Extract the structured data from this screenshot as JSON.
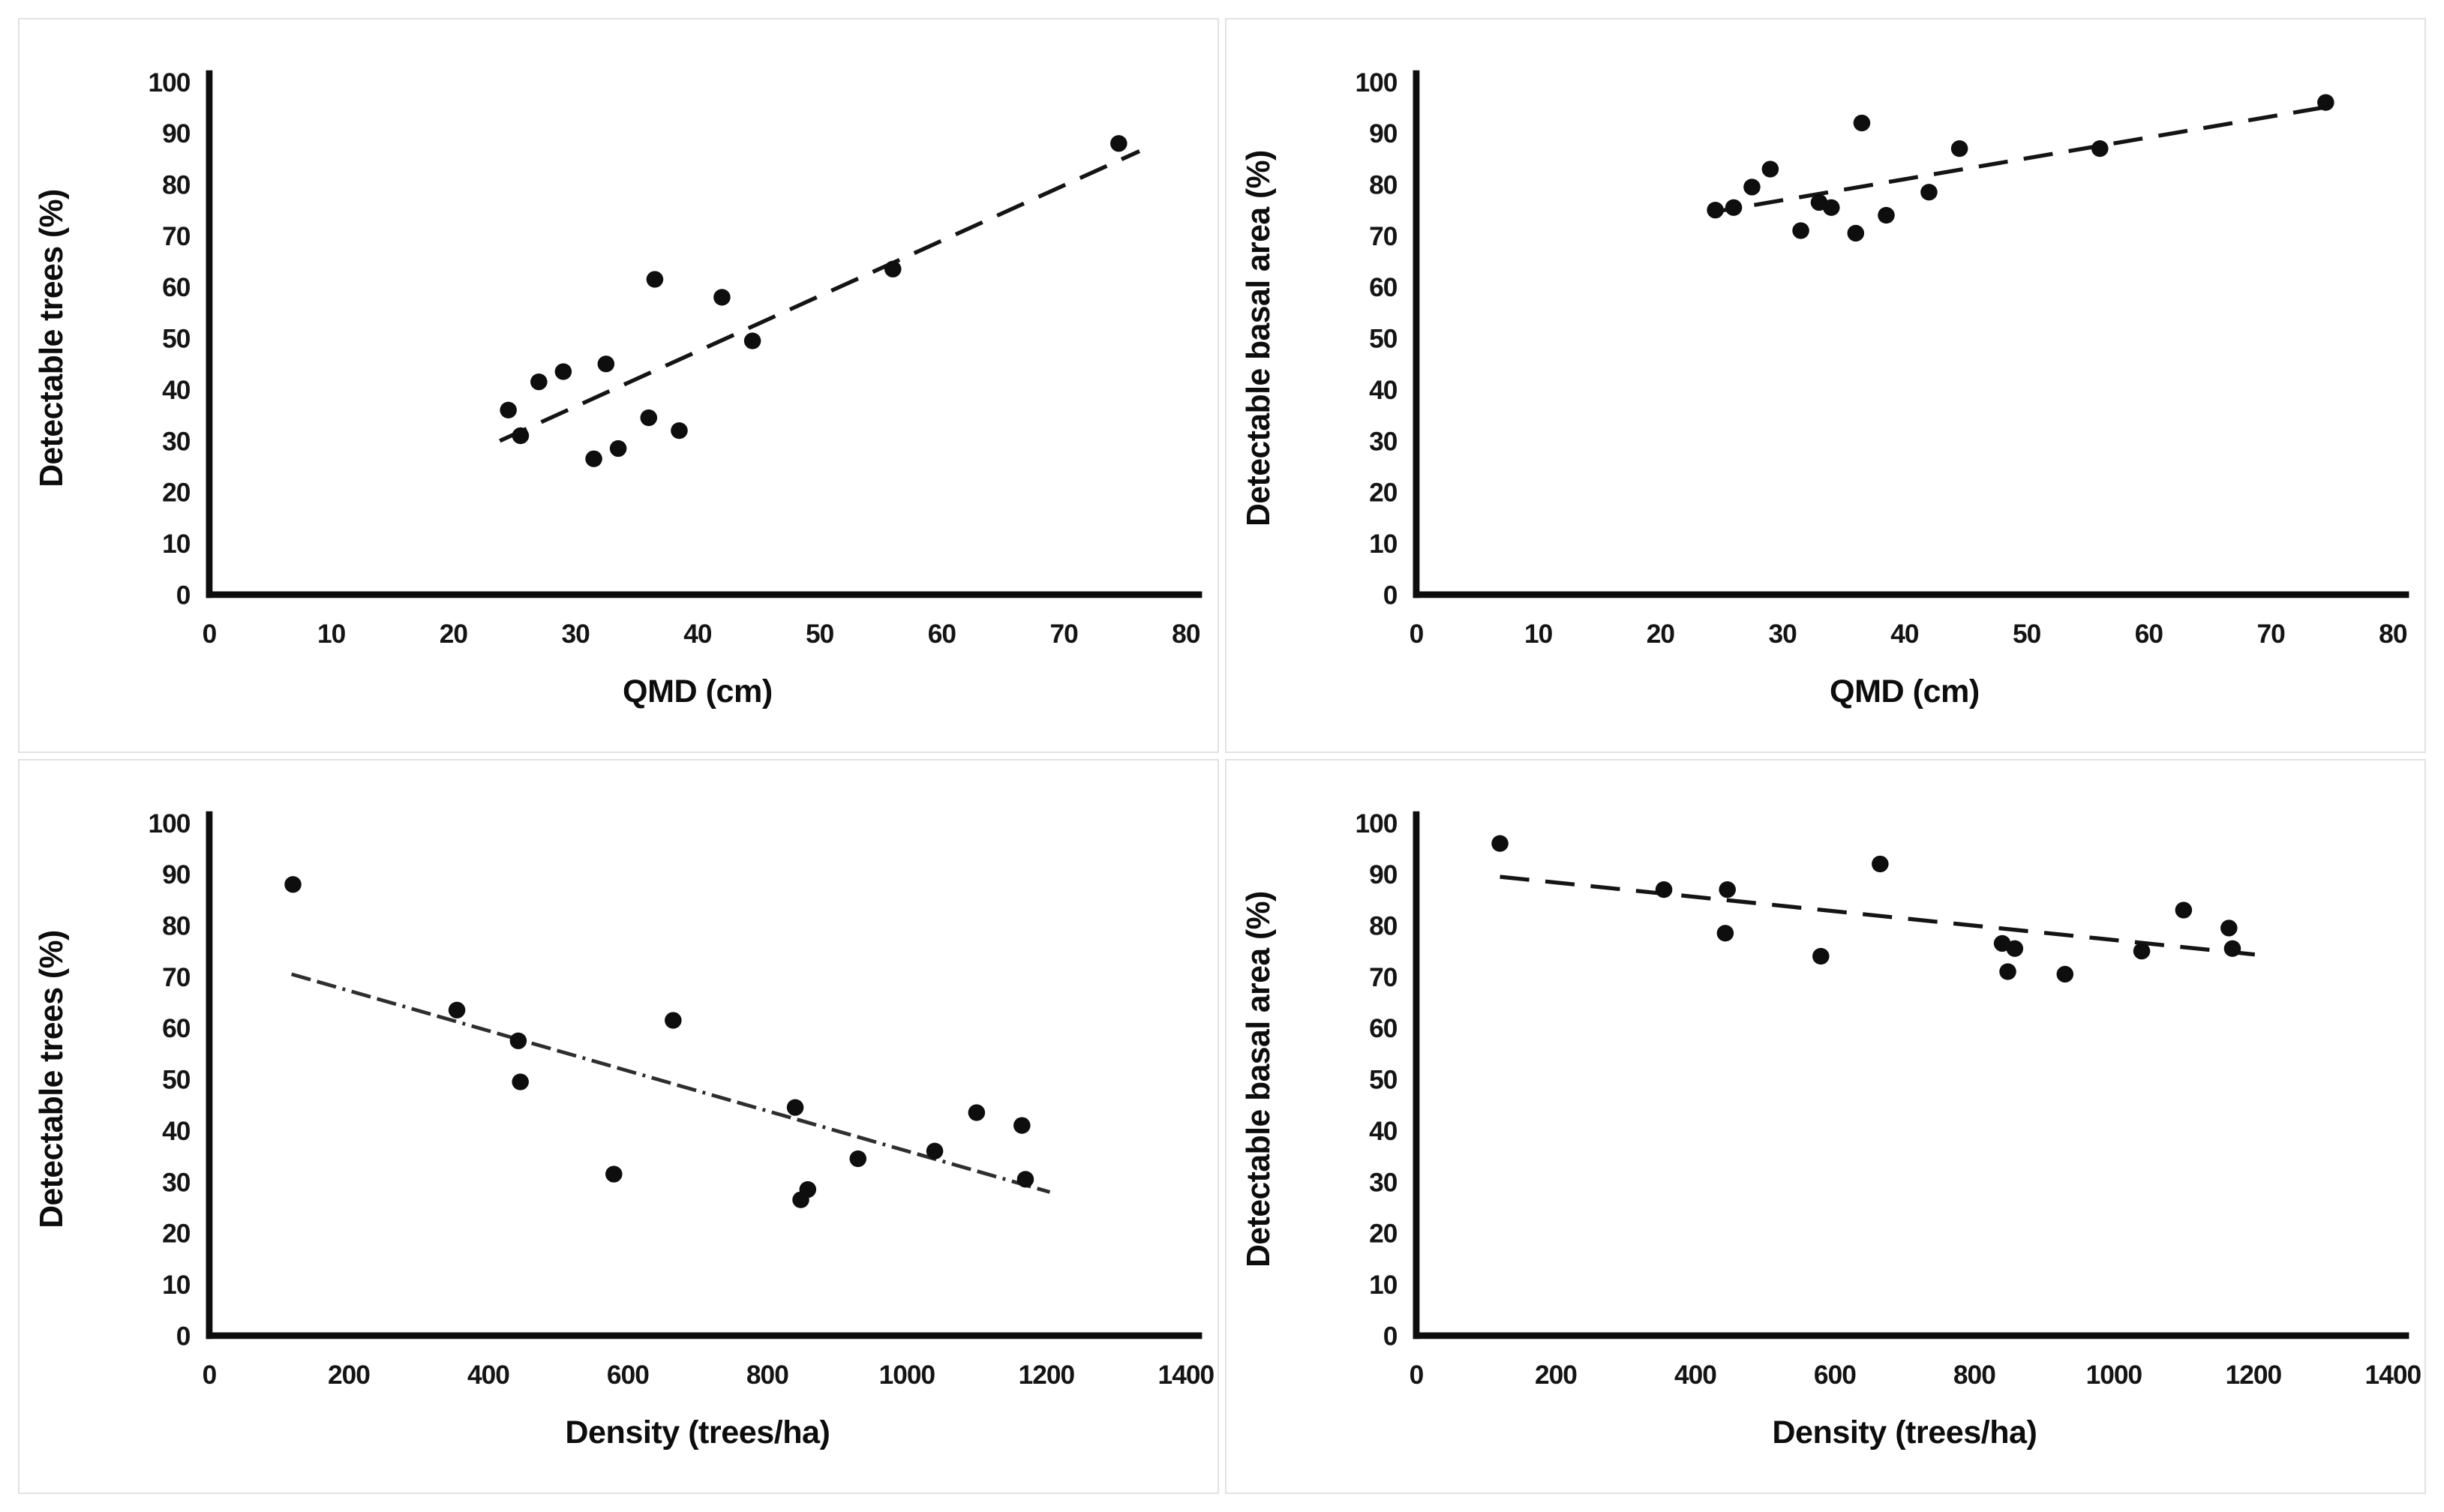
{
  "page": {
    "background": "#ffffff",
    "panel_border_color": "#e2e2e2",
    "axis_color": "#0d0d0d",
    "dot_color": "#0e0e0e",
    "trend_dash_color": "#141414",
    "trend_dashdot_color": "#2e2e2e"
  },
  "chart_data": [
    {
      "id": "trees-vs-qmd",
      "type": "scatter",
      "title": "",
      "xlabel": "QMD (cm)",
      "ylabel": "Detectable trees (%)",
      "xlim": [
        0,
        80
      ],
      "ylim": [
        0,
        100
      ],
      "xticks": [
        0,
        10,
        20,
        30,
        40,
        50,
        60,
        70,
        80
      ],
      "yticks": [
        0,
        10,
        20,
        30,
        40,
        50,
        60,
        70,
        80,
        90,
        100
      ],
      "grid": false,
      "legend": "none",
      "points": [
        [
          24.5,
          36
        ],
        [
          25.5,
          31
        ],
        [
          27,
          41.5
        ],
        [
          29,
          43.5
        ],
        [
          31.5,
          26.5
        ],
        [
          32.5,
          45
        ],
        [
          33.5,
          28.5
        ],
        [
          36,
          34.5
        ],
        [
          36.5,
          61.5
        ],
        [
          38.5,
          32
        ],
        [
          42,
          58
        ],
        [
          44.5,
          49.5
        ],
        [
          56,
          63.5
        ],
        [
          74.5,
          88
        ]
      ],
      "trendline": {
        "from": [
          23.8,
          30
        ],
        "to": [
          76.2,
          86.5
        ],
        "style": "dashed"
      }
    },
    {
      "id": "basal-area-vs-qmd",
      "type": "scatter",
      "title": "",
      "xlabel": "QMD (cm)",
      "ylabel": "Detectable basal area (%)",
      "xlim": [
        0,
        80
      ],
      "ylim": [
        0,
        100
      ],
      "xticks": [
        0,
        10,
        20,
        30,
        40,
        50,
        60,
        70,
        80
      ],
      "yticks": [
        0,
        10,
        20,
        30,
        40,
        50,
        60,
        70,
        80,
        90,
        100
      ],
      "grid": false,
      "legend": "none",
      "points": [
        [
          24.5,
          75
        ],
        [
          26,
          75.5
        ],
        [
          27.5,
          79.5
        ],
        [
          29,
          83
        ],
        [
          31.5,
          71
        ],
        [
          33,
          76.5
        ],
        [
          34,
          75.5
        ],
        [
          36,
          70.5
        ],
        [
          36.5,
          92
        ],
        [
          38.5,
          74
        ],
        [
          42,
          78.5
        ],
        [
          44.5,
          87
        ],
        [
          56,
          87
        ],
        [
          74.5,
          96
        ]
      ],
      "trendline": {
        "from": [
          24,
          74.5
        ],
        "to": [
          75.5,
          95.5
        ],
        "style": "dashed"
      }
    },
    {
      "id": "trees-vs-density",
      "type": "scatter",
      "title": "",
      "xlabel": "Density (trees/ha)",
      "ylabel": "Detectable trees (%)",
      "xlim": [
        0,
        1400
      ],
      "ylim": [
        0,
        100
      ],
      "xticks": [
        0,
        200,
        400,
        600,
        800,
        1000,
        1200,
        1400
      ],
      "yticks": [
        0,
        10,
        20,
        30,
        40,
        50,
        60,
        70,
        80,
        90,
        100
      ],
      "grid": false,
      "legend": "none",
      "points": [
        [
          120,
          88
        ],
        [
          355,
          63.5
        ],
        [
          443,
          57.5
        ],
        [
          446,
          49.5
        ],
        [
          580,
          31.5
        ],
        [
          665,
          61.5
        ],
        [
          840,
          44.5
        ],
        [
          848,
          26.5
        ],
        [
          858,
          28.5
        ],
        [
          930,
          34.5
        ],
        [
          1040,
          36
        ],
        [
          1100,
          43.5
        ],
        [
          1165,
          41
        ],
        [
          1170,
          30.5
        ]
      ],
      "trendline": {
        "from": [
          118,
          70.5
        ],
        "to": [
          1205,
          28
        ],
        "style": "dashdot"
      }
    },
    {
      "id": "basal-area-vs-density",
      "type": "scatter",
      "title": "",
      "xlabel": "Density (trees/ha)",
      "ylabel": "Detectable basal area (%)",
      "xlim": [
        0,
        1400
      ],
      "ylim": [
        0,
        100
      ],
      "xticks": [
        0,
        200,
        400,
        600,
        800,
        1000,
        1200,
        1400
      ],
      "yticks": [
        0,
        10,
        20,
        30,
        40,
        50,
        60,
        70,
        80,
        90,
        100
      ],
      "grid": false,
      "legend": "none",
      "points": [
        [
          120,
          96
        ],
        [
          355,
          87
        ],
        [
          443,
          78.5
        ],
        [
          446,
          87
        ],
        [
          580,
          74
        ],
        [
          665,
          92
        ],
        [
          840,
          76.5
        ],
        [
          848,
          71
        ],
        [
          858,
          75.5
        ],
        [
          930,
          70.5
        ],
        [
          1040,
          75
        ],
        [
          1100,
          83
        ],
        [
          1165,
          79.5
        ],
        [
          1170,
          75.5
        ]
      ],
      "trendline": {
        "from": [
          120,
          89.5
        ],
        "to": [
          1205,
          74.3
        ],
        "style": "dashed"
      }
    }
  ]
}
